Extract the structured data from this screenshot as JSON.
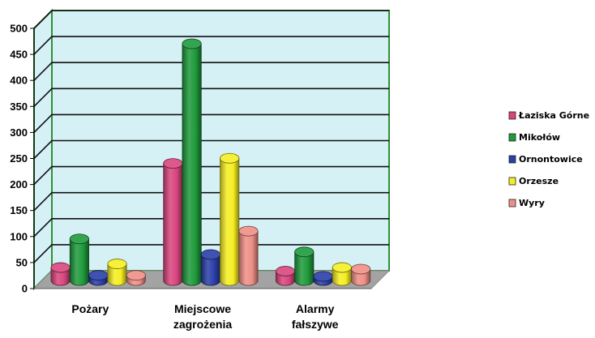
{
  "chart_data": {
    "type": "bar",
    "style": "3d-cylinder",
    "categories": [
      "Pożary",
      "Miejscowe zagrożenia",
      "Alarmy fałszywe"
    ],
    "series": [
      {
        "name": "Łaziska Górne",
        "color": "#d9457e",
        "values": [
          25,
          225,
          18
        ]
      },
      {
        "name": "Mikołów",
        "color": "#1f9a3c",
        "values": [
          80,
          455,
          55
        ]
      },
      {
        "name": "Ornontowice",
        "color": "#2a3fa8",
        "values": [
          10,
          50,
          8
        ]
      },
      {
        "name": "Orzesze",
        "color": "#f5ee22",
        "values": [
          32,
          235,
          25
        ]
      },
      {
        "name": "Wyry",
        "color": "#ee8f86",
        "values": [
          10,
          95,
          22
        ]
      }
    ],
    "yticks": [
      0,
      50,
      100,
      150,
      200,
      250,
      300,
      350,
      400,
      450,
      500
    ],
    "ylim": [
      0,
      500
    ],
    "grid": true,
    "legend": "right",
    "colors": {
      "wall": "#d6f1f6",
      "floor": "#a3a3a3",
      "wall_border": "#2f8f35",
      "gridline": "#111111"
    }
  }
}
